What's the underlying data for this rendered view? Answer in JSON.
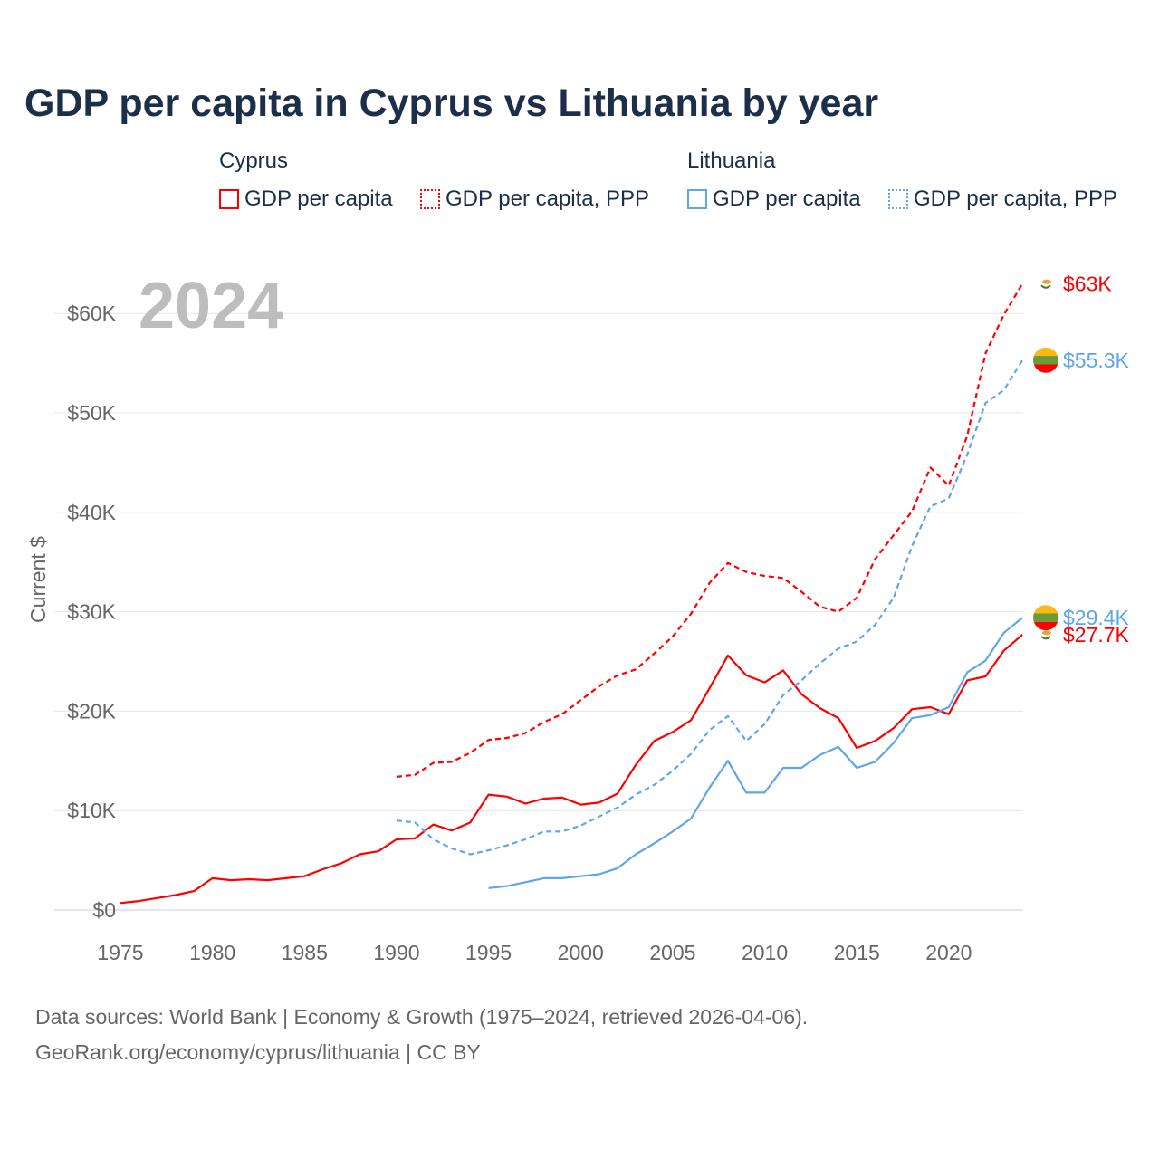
{
  "title": "GDP per capita in Cyprus vs Lithuania by year",
  "legend": {
    "groups": [
      {
        "name": "Cyprus",
        "items": [
          "GDP per capita",
          "GDP per capita, PPP"
        ]
      },
      {
        "name": "Lithuania",
        "items": [
          "GDP per capita",
          "GDP per capita, PPP"
        ]
      }
    ]
  },
  "year_watermark": "2024",
  "footer": {
    "line1": "Data sources: World Bank | Economy & Growth (1975–2024, retrieved 2026-04-06).",
    "line2": "GeoRank.org/economy/cyprus/lithuania | CC BY"
  },
  "colors": {
    "cyprus": "#ff0000",
    "lithuania": "#5fa6e8",
    "text": "#1b2f4b"
  },
  "chart_data": {
    "type": "line",
    "title": "GDP per capita in Cyprus vs Lithuania by year",
    "xlabel": "",
    "ylabel": "Current $",
    "xlim": [
      1975,
      2024
    ],
    "ylim": [
      0,
      63000
    ],
    "xticks": [
      1975,
      1980,
      1985,
      1990,
      1995,
      2000,
      2005,
      2010,
      2015,
      2020
    ],
    "yticks": [
      0,
      10000,
      20000,
      30000,
      40000,
      50000,
      60000
    ],
    "ytick_labels": [
      "$0",
      "$10K",
      "$20K",
      "$30K",
      "$40K",
      "$50K",
      "$60K"
    ],
    "grid": true,
    "series": [
      {
        "name": "Cyprus GDP per capita",
        "country": "cyprus",
        "dash": false,
        "start": 1975,
        "end_label": "$27.7K",
        "values": [
          0.7,
          0.9,
          1.2,
          1.5,
          1.9,
          3.2,
          3.0,
          3.1,
          3.0,
          3.2,
          3.4,
          4.1,
          4.7,
          5.6,
          5.9,
          7.1,
          7.2,
          8.6,
          8.0,
          8.8,
          11.6,
          11.4,
          10.7,
          11.2,
          11.3,
          10.6,
          10.8,
          11.7,
          14.6,
          17.0,
          17.9,
          19.1,
          22.3,
          25.6,
          23.6,
          22.9,
          24.1,
          21.7,
          20.3,
          19.3,
          16.3,
          17.0,
          18.3,
          20.2,
          20.4,
          19.7,
          23.1,
          23.5,
          26.1,
          27.7
        ]
      },
      {
        "name": "Cyprus GDP per capita, PPP",
        "country": "cyprus",
        "dash": true,
        "start": 1990,
        "end_label": "$63K",
        "values": [
          13.4,
          13.6,
          14.8,
          14.9,
          15.8,
          17.1,
          17.3,
          17.8,
          18.9,
          19.7,
          21.1,
          22.5,
          23.6,
          24.2,
          25.8,
          27.5,
          29.8,
          32.9,
          34.9,
          34.0,
          33.6,
          33.4,
          32.0,
          30.5,
          30.0,
          31.4,
          35.3,
          37.7,
          40.1,
          44.5,
          42.7,
          47.7,
          56.0,
          59.9,
          63.0
        ]
      },
      {
        "name": "Lithuania GDP per capita",
        "country": "lithuania",
        "dash": false,
        "start": 1995,
        "end_label": "$29.4K",
        "values": [
          2.2,
          2.4,
          2.8,
          3.2,
          3.2,
          3.4,
          3.6,
          4.2,
          5.6,
          6.7,
          7.9,
          9.2,
          12.3,
          15.0,
          11.8,
          11.8,
          14.3,
          14.3,
          15.6,
          16.4,
          14.3,
          14.9,
          16.8,
          19.3,
          19.6,
          20.4,
          23.9,
          25.1,
          27.9,
          29.4
        ]
      },
      {
        "name": "Lithuania GDP per capita, PPP",
        "country": "lithuania",
        "dash": true,
        "start": 1990,
        "end_label": "$55.3K",
        "values": [
          9.0,
          8.8,
          7.1,
          6.2,
          5.6,
          6.0,
          6.5,
          7.1,
          7.9,
          7.9,
          8.5,
          9.4,
          10.3,
          11.6,
          12.6,
          14.0,
          15.7,
          18.1,
          19.5,
          17.0,
          18.7,
          21.6,
          23.1,
          24.8,
          26.3,
          27.0,
          28.7,
          31.4,
          36.6,
          40.6,
          41.4,
          45.8,
          51.0,
          52.3,
          55.3
        ]
      }
    ],
    "value_unit": "thousand USD"
  }
}
